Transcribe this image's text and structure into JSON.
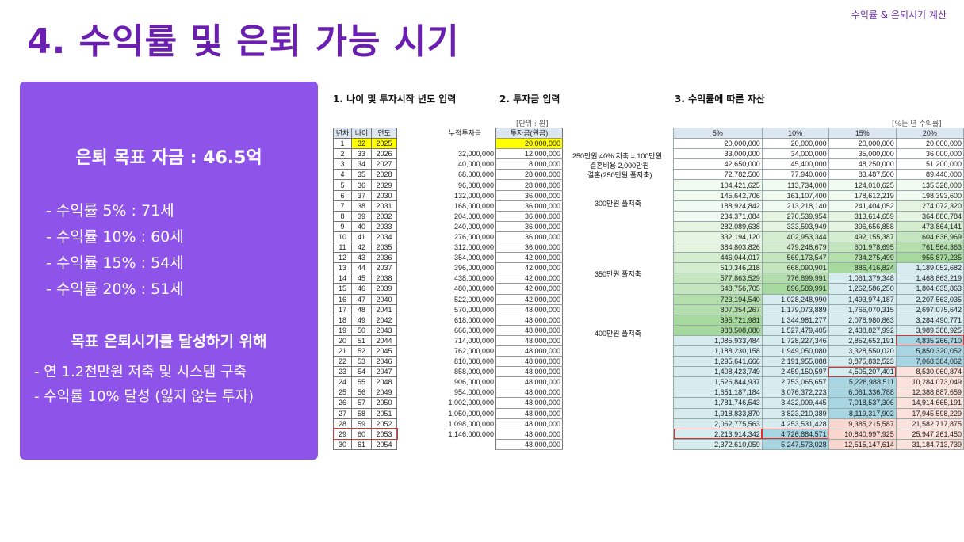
{
  "header": {
    "top_right": "수익률 & 은퇴시기 계산",
    "title": "4. 수익률 및 은퇴 가능 시기"
  },
  "panel": {
    "goal": "은퇴 목표 자금 : 46.5억",
    "rates": [
      "- 수익률   5% : 71세",
      "- 수익률 10% : 60세",
      "- 수익률 15% : 54세",
      "- 수익률 20% : 51세"
    ],
    "subtitle": "목표 은퇴시기를 달성하기 위해",
    "bullets": [
      "- 연 1.2천만원 저축 및 시스템 구축",
      "- 수익률 10% 달성 (잃지 않는 투자)"
    ]
  },
  "sections": {
    "s1": "1. 나이 및 투자시작 년도 입력",
    "s2": "2. 투자금 입력",
    "s3": "3. 수익률에 따른 자산"
  },
  "units": {
    "won": "[단위 : 원]",
    "rate": "[%는 년 수익률]"
  },
  "table1": {
    "headers": [
      "년차",
      "나이",
      "연도"
    ]
  },
  "table2": {
    "headers": [
      "누적투자금",
      "투자금(원금)"
    ]
  },
  "table3": {
    "headers": [
      "5%",
      "10%",
      "15%",
      "20%"
    ]
  },
  "notes": [
    "250만원 40% 저축 = 100만원",
    "결혼비용 2,000만원",
    "결혼(250만원 풀저축)",
    "300만원 풀저축",
    "350만원 풀저축",
    "400만원 풀저축"
  ],
  "colors": {
    "accent": "#6a1fb0",
    "panel": "#8e54e9",
    "input_yellow": "#ffff00",
    "highlight_red": "#e03030"
  },
  "rows": [
    [
      "1",
      "32",
      "2025",
      "",
      "20,000,000",
      "20,000,000",
      "20,000,000",
      "20,000,000",
      "20,000,000"
    ],
    [
      "2",
      "33",
      "2026",
      "32,000,000",
      "12,000,000",
      "33,000,000",
      "34,000,000",
      "35,000,000",
      "36,000,000"
    ],
    [
      "3",
      "34",
      "2027",
      "40,000,000",
      "8,000,000",
      "42,650,000",
      "45,400,000",
      "48,250,000",
      "51,200,000"
    ],
    [
      "4",
      "35",
      "2028",
      "68,000,000",
      "28,000,000",
      "72,782,500",
      "77,940,000",
      "83,487,500",
      "89,440,000"
    ],
    [
      "5",
      "36",
      "2029",
      "96,000,000",
      "28,000,000",
      "104,421,625",
      "113,734,000",
      "124,010,625",
      "135,328,000"
    ],
    [
      "6",
      "37",
      "2030",
      "132,000,000",
      "36,000,000",
      "145,642,706",
      "161,107,400",
      "178,612,219",
      "198,393,600"
    ],
    [
      "7",
      "38",
      "2031",
      "168,000,000",
      "36,000,000",
      "188,924,842",
      "213,218,140",
      "241,404,052",
      "274,072,320"
    ],
    [
      "8",
      "39",
      "2032",
      "204,000,000",
      "36,000,000",
      "234,371,084",
      "270,539,954",
      "313,614,659",
      "364,886,784"
    ],
    [
      "9",
      "40",
      "2033",
      "240,000,000",
      "36,000,000",
      "282,089,638",
      "333,593,949",
      "396,656,858",
      "473,864,141"
    ],
    [
      "10",
      "41",
      "2034",
      "276,000,000",
      "36,000,000",
      "332,194,120",
      "402,953,344",
      "492,155,387",
      "604,636,969"
    ],
    [
      "11",
      "42",
      "2035",
      "312,000,000",
      "36,000,000",
      "384,803,826",
      "479,248,679",
      "601,978,695",
      "761,564,363"
    ],
    [
      "12",
      "43",
      "2036",
      "354,000,000",
      "42,000,000",
      "446,044,017",
      "569,173,547",
      "734,275,499",
      "955,877,235"
    ],
    [
      "13",
      "44",
      "2037",
      "396,000,000",
      "42,000,000",
      "510,346,218",
      "668,090,901",
      "886,416,824",
      "1,189,052,682"
    ],
    [
      "14",
      "45",
      "2038",
      "438,000,000",
      "42,000,000",
      "577,863,529",
      "776,899,991",
      "1,061,379,348",
      "1,468,863,219"
    ],
    [
      "15",
      "46",
      "2039",
      "480,000,000",
      "42,000,000",
      "648,756,705",
      "896,589,991",
      "1,262,586,250",
      "1,804,635,863"
    ],
    [
      "16",
      "47",
      "2040",
      "522,000,000",
      "42,000,000",
      "723,194,540",
      "1,028,248,990",
      "1,493,974,187",
      "2,207,563,035"
    ],
    [
      "17",
      "48",
      "2041",
      "570,000,000",
      "48,000,000",
      "807,354,267",
      "1,179,073,889",
      "1,766,070,315",
      "2,697,075,642"
    ],
    [
      "18",
      "49",
      "2042",
      "618,000,000",
      "48,000,000",
      "895,721,981",
      "1,344,981,277",
      "2,078,980,863",
      "3,284,490,771"
    ],
    [
      "19",
      "50",
      "2043",
      "666,000,000",
      "48,000,000",
      "988,508,080",
      "1,527,479,405",
      "2,438,827,992",
      "3,989,388,925"
    ],
    [
      "20",
      "51",
      "2044",
      "714,000,000",
      "48,000,000",
      "1,085,933,484",
      "1,728,227,346",
      "2,852,652,191",
      "4,835,266,710"
    ],
    [
      "21",
      "52",
      "2045",
      "762,000,000",
      "48,000,000",
      "1,188,230,158",
      "1,949,050,080",
      "3,328,550,020",
      "5,850,320,052"
    ],
    [
      "22",
      "53",
      "2046",
      "810,000,000",
      "48,000,000",
      "1,295,641,666",
      "2,191,955,088",
      "3,875,832,523",
      "7,068,384,062"
    ],
    [
      "23",
      "54",
      "2047",
      "858,000,000",
      "48,000,000",
      "1,408,423,749",
      "2,459,150,597",
      "4,505,207,401",
      "8,530,060,874"
    ],
    [
      "24",
      "55",
      "2048",
      "906,000,000",
      "48,000,000",
      "1,526,844,937",
      "2,753,065,657",
      "5,228,988,511",
      "10,284,073,049"
    ],
    [
      "25",
      "56",
      "2049",
      "954,000,000",
      "48,000,000",
      "1,651,187,184",
      "3,076,372,223",
      "6,061,336,788",
      "12,388,887,659"
    ],
    [
      "26",
      "57",
      "2050",
      "1,002,000,000",
      "48,000,000",
      "1,781,746,543",
      "3,432,009,445",
      "7,018,537,306",
      "14,914,665,191"
    ],
    [
      "27",
      "58",
      "2051",
      "1,050,000,000",
      "48,000,000",
      "1,918,833,870",
      "3,823,210,389",
      "8,119,317,902",
      "17,945,598,229"
    ],
    [
      "28",
      "59",
      "2052",
      "1,098,000,000",
      "48,000,000",
      "2,062,775,563",
      "4,253,531,428",
      "9,385,215,587",
      "21,582,717,875"
    ],
    [
      "29",
      "60",
      "2053",
      "1,146,000,000",
      "48,000,000",
      "2,213,914,342",
      "4,726,884,571",
      "10,840,997,925",
      "25,947,261,450"
    ],
    [
      "30",
      "61",
      "2054",
      "",
      "48,000,000",
      "2,372,610,059",
      "5,247,573,028",
      "12,515,147,614",
      "31,184,713,739"
    ]
  ]
}
